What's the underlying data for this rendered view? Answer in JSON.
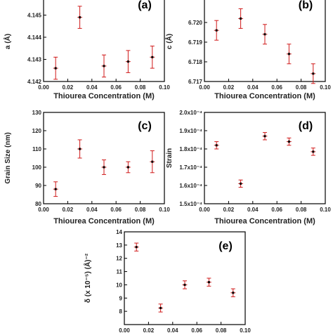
{
  "chart_data": [
    {
      "panel": "(a)",
      "type": "scatter",
      "xlabel": "Thiourea Concentration (M)",
      "ylabel": "a (Å)",
      "xlim": [
        0.0,
        0.1
      ],
      "ylim": [
        4.142,
        4.146
      ],
      "xticks": [
        "0.00",
        "0.02",
        "0.04",
        "0.06",
        "0.08",
        "0.10"
      ],
      "yticks": [
        "4.142",
        "4.143",
        "4.144",
        "4.145"
      ],
      "yticks_values": [
        4.142,
        4.143,
        4.144,
        4.145
      ],
      "x": [
        0.01,
        0.03,
        0.05,
        0.07,
        0.09
      ],
      "y": [
        4.1426,
        4.1449,
        4.1427,
        4.1429,
        4.1431
      ],
      "yerr": [
        0.0005,
        0.0005,
        0.0005,
        0.0005,
        0.0005
      ],
      "xerr": [
        0.002,
        0.002,
        0.002,
        0.002,
        0.002
      ],
      "grid": false
    },
    {
      "panel": "(b)",
      "type": "scatter",
      "xlabel": "Thiourea Concentration (M)",
      "ylabel": "c (Å)",
      "xlim": [
        0.0,
        0.1
      ],
      "ylim": [
        6.717,
        6.7215
      ],
      "xticks": [
        "0.00",
        "0.02",
        "0.04",
        "0.06",
        "0.08",
        "0.10"
      ],
      "yticks": [
        "6.717",
        "6.718",
        "6.719",
        "6.720"
      ],
      "yticks_values": [
        6.717,
        6.718,
        6.719,
        6.72
      ],
      "x": [
        0.01,
        0.03,
        0.05,
        0.07,
        0.09
      ],
      "y": [
        6.7196,
        6.7202,
        6.7194,
        6.7184,
        6.7174
      ],
      "yerr": [
        0.0005,
        0.0005,
        0.0005,
        0.0005,
        0.0005
      ],
      "xerr": [
        0.002,
        0.002,
        0.002,
        0.002,
        0.002
      ],
      "grid": false
    },
    {
      "panel": "(c)",
      "type": "scatter",
      "xlabel": "Thiourea Concentration (M)",
      "ylabel": "Grain Size (nm)",
      "xlim": [
        0.0,
        0.1
      ],
      "ylim": [
        80,
        130
      ],
      "xticks": [
        "0.00",
        "0.02",
        "0.04",
        "0.06",
        "0.08",
        "0.10"
      ],
      "yticks": [
        "80",
        "90",
        "100",
        "110",
        "120",
        "130"
      ],
      "yticks_values": [
        80,
        90,
        100,
        110,
        120,
        130
      ],
      "x": [
        0.01,
        0.03,
        0.05,
        0.07,
        0.09
      ],
      "y": [
        88,
        110,
        100,
        100,
        103
      ],
      "yerr": [
        4,
        5,
        4,
        3,
        6
      ],
      "xerr": [
        0.002,
        0.002,
        0.002,
        0.002,
        0.002
      ],
      "grid": false
    },
    {
      "panel": "(d)",
      "type": "scatter",
      "xlabel": "Thiourea Concentration (M)",
      "ylabel": "Strain",
      "xlim": [
        0.0,
        0.1
      ],
      "ylim": [
        1.5,
        2.0
      ],
      "xticks": [
        "0.00",
        "0.02",
        "0.04",
        "0.06",
        "0.08",
        "0.10"
      ],
      "yticks": [
        "1.5x10⁻⁴",
        "1.6x10⁻⁴",
        "1.7x10⁻⁴",
        "1.8x10⁻⁴",
        "1.9x10⁻⁴",
        "2.0x10⁻⁴"
      ],
      "yticks_values": [
        1.5,
        1.6,
        1.7,
        1.8,
        1.9,
        2.0
      ],
      "x": [
        0.01,
        0.03,
        0.05,
        0.07,
        0.09
      ],
      "y": [
        1.82,
        1.61,
        1.87,
        1.84,
        1.785
      ],
      "yerr": [
        0.02,
        0.02,
        0.02,
        0.02,
        0.02
      ],
      "xerr": [
        0.002,
        0.002,
        0.002,
        0.002,
        0.002
      ],
      "grid": false
    },
    {
      "panel": "(e)",
      "type": "scatter",
      "xlabel": "",
      "ylabel": "δ (x 10⁻⁵) (Å)⁻²",
      "xlim": [
        0.0,
        0.1
      ],
      "ylim": [
        7,
        14
      ],
      "xticks": [
        "0.00",
        "0.02",
        "0.04",
        "0.06",
        "0.08",
        "0.10"
      ],
      "yticks": [
        "8",
        "9",
        "10",
        "11",
        "12",
        "13",
        "14"
      ],
      "yticks_values": [
        8,
        9,
        10,
        11,
        12,
        13,
        14
      ],
      "x": [
        0.01,
        0.03,
        0.05,
        0.07,
        0.09
      ],
      "y": [
        12.85,
        8.25,
        10.0,
        10.2,
        9.4
      ],
      "yerr": [
        0.3,
        0.3,
        0.3,
        0.3,
        0.3
      ],
      "xerr": [
        0.002,
        0.002,
        0.002,
        0.002,
        0.002
      ],
      "grid": false
    }
  ]
}
